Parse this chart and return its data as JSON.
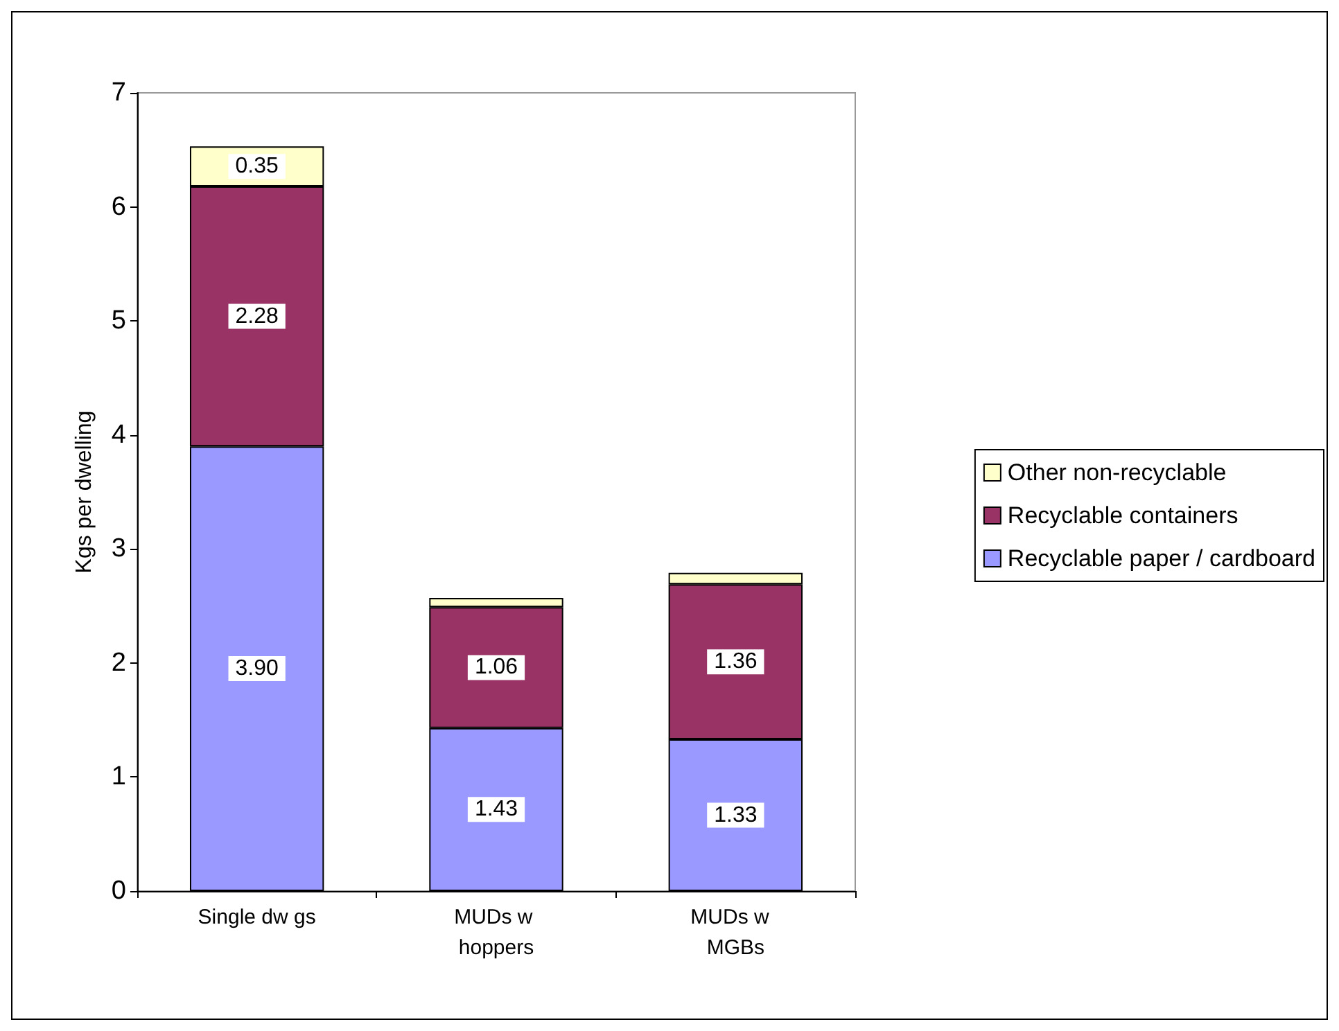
{
  "chart_data": {
    "type": "bar",
    "stacked": true,
    "ylabel": "Kgs per dwelling",
    "categories": [
      "Single dw gs",
      "MUDs w hoppers",
      "MUDs w  MGBs"
    ],
    "series": [
      {
        "name": "Recyclable paper / cardboard",
        "color": "#9999ff",
        "values": [
          3.9,
          1.43,
          1.33
        ],
        "value_labels": [
          "3.90",
          "1.43",
          "1.33"
        ]
      },
      {
        "name": "Recyclable containers",
        "color": "#993366",
        "values": [
          2.28,
          1.06,
          1.36
        ],
        "value_labels": [
          "2.28",
          "1.06",
          "1.36"
        ]
      },
      {
        "name": "Other non-recyclable",
        "color": "#ffffcc",
        "values": [
          0.35,
          0.08,
          0.1
        ],
        "value_labels": [
          "0.35",
          null,
          null
        ]
      }
    ],
    "ylim": [
      0,
      7
    ],
    "yticks": [
      0,
      1,
      2,
      3,
      4,
      5,
      6,
      7
    ],
    "grid": false,
    "legend": "right"
  }
}
